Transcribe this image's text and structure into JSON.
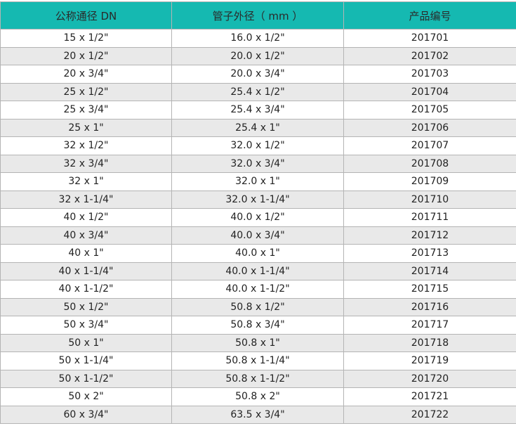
{
  "header": {
    "colors": {
      "header_bg": "#15b9b1",
      "alt_row": "#e9e9e9"
    },
    "columns": [
      "公称通径 DN",
      "管子外径（ mm ）",
      "产品编号"
    ]
  },
  "rows": [
    [
      "15 x 1/2\"",
      "16.0 x 1/2\"",
      "201701"
    ],
    [
      "20 x 1/2\"",
      "20.0 x 1/2\"",
      "201702"
    ],
    [
      "20 x 3/4\"",
      "20.0 x 3/4\"",
      "201703"
    ],
    [
      "25 x 1/2\"",
      "25.4 x 1/2\"",
      "201704"
    ],
    [
      "25 x 3/4\"",
      "25.4 x 3/4\"",
      "201705"
    ],
    [
      "25 x 1\"",
      "25.4 x 1\"",
      "201706"
    ],
    [
      "32 x 1/2\"",
      "32.0 x 1/2\"",
      "201707"
    ],
    [
      "32 x 3/4\"",
      "32.0 x 3/4\"",
      "201708"
    ],
    [
      "32 x 1\"",
      "32.0 x 1\"",
      "201709"
    ],
    [
      "32 x 1-1/4\"",
      "32.0 x 1-1/4\"",
      "201710"
    ],
    [
      "40 x 1/2\"",
      "40.0 x 1/2\"",
      "201711"
    ],
    [
      "40 x 3/4\"",
      "40.0 x 3/4\"",
      "201712"
    ],
    [
      "40 x 1\"",
      "40.0 x 1\"",
      "201713"
    ],
    [
      "40 x 1-1/4\"",
      "40.0 x 1-1/4\"",
      "201714"
    ],
    [
      "40 x 1-1/2\"",
      "40.0 x 1-1/2\"",
      "201715"
    ],
    [
      "50 x 1/2\"",
      "50.8 x 1/2\"",
      "201716"
    ],
    [
      "50 x 3/4\"",
      "50.8 x 3/4\"",
      "201717"
    ],
    [
      "50 x 1\"",
      "50.8 x 1\"",
      "201718"
    ],
    [
      "50 x 1-1/4\"",
      "50.8 x 1-1/4\"",
      "201719"
    ],
    [
      "50 x 1-1/2\"",
      "50.8 x 1-1/2\"",
      "201720"
    ],
    [
      "50 x 2\"",
      "50.8 x 2\"",
      "201721"
    ],
    [
      "60 x 3/4\"",
      "63.5 x 3/4\"",
      "201722"
    ]
  ]
}
